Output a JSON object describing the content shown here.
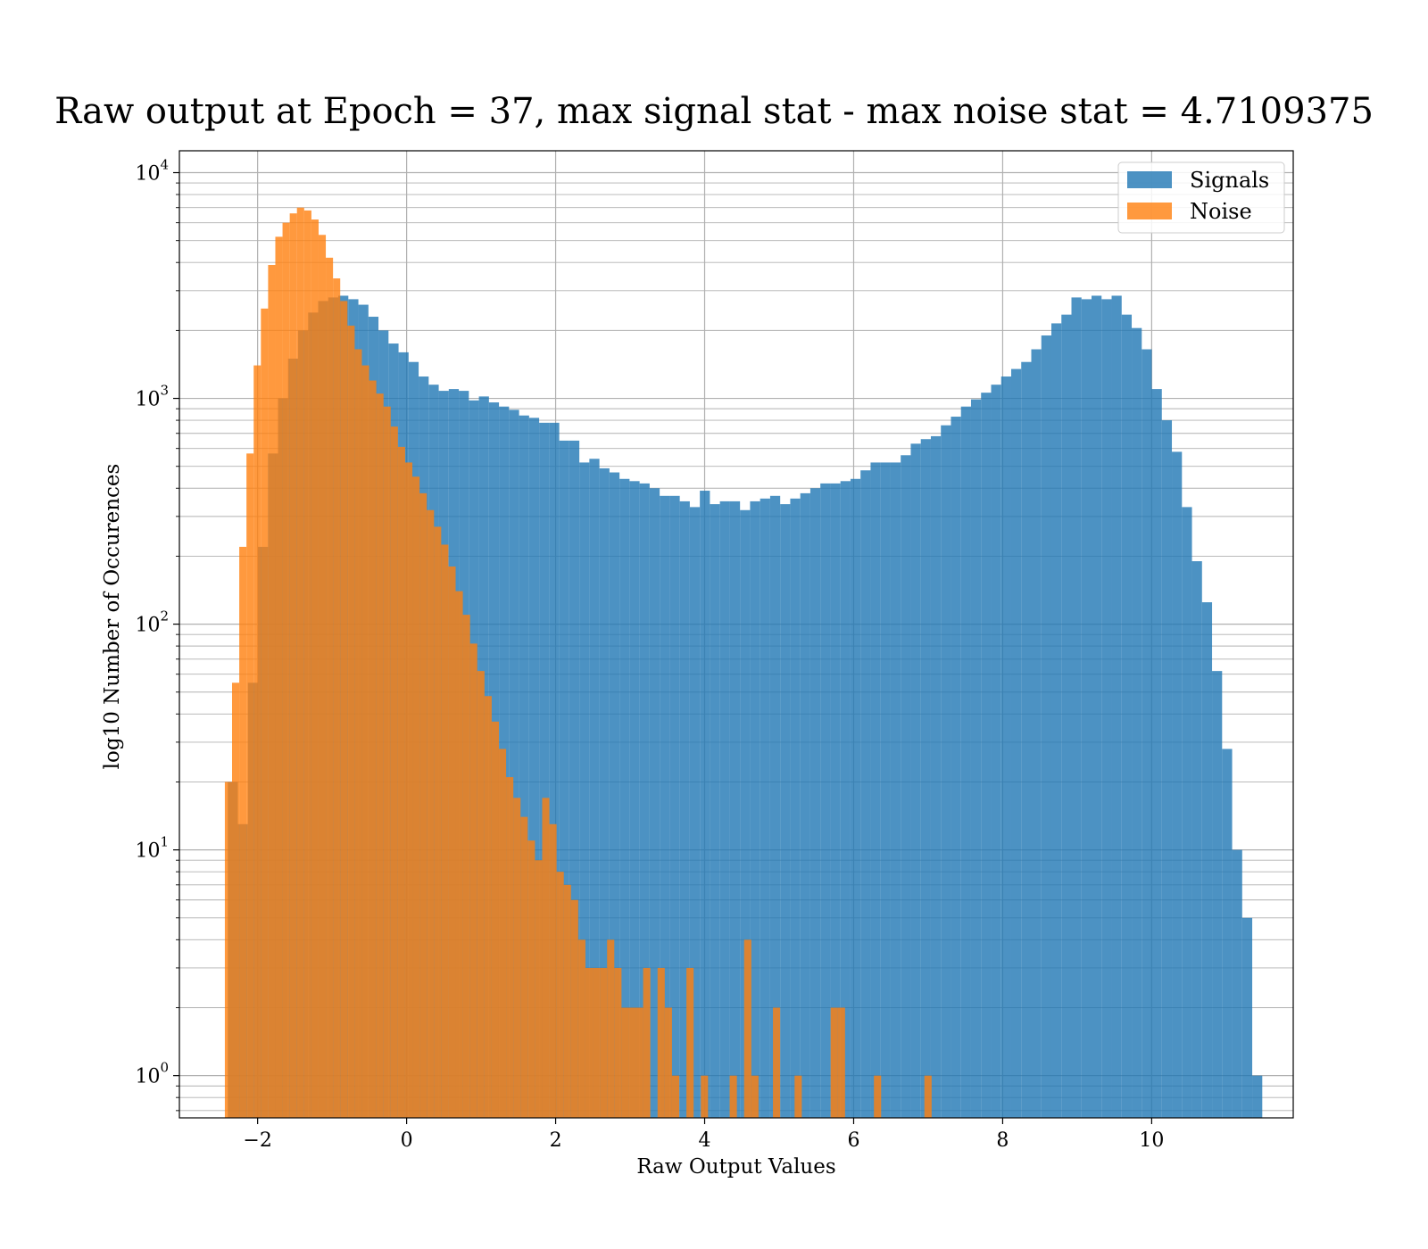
{
  "chart_data": {
    "type": "histogram",
    "title": "Raw output at Epoch = 37, max signal stat - max noise stat = 4.7109375",
    "xlabel": "Raw Output Values",
    "ylabel": "log10 Number of Occurences",
    "x_scale": "linear",
    "y_scale": "log",
    "xlim": [
      -3.05,
      11.9
    ],
    "ylim": [
      0.65,
      12500
    ],
    "xticks": [
      -2,
      0,
      2,
      4,
      6,
      8,
      10
    ],
    "xtick_labels": [
      "−2",
      "0",
      "2",
      "4",
      "6",
      "8",
      "10"
    ],
    "yticks": [
      1,
      10,
      100,
      1000,
      10000
    ],
    "ytick_labels": [
      {
        "base": "10",
        "exp": "0"
      },
      {
        "base": "10",
        "exp": "1"
      },
      {
        "base": "10",
        "exp": "2"
      },
      {
        "base": "10",
        "exp": "3"
      },
      {
        "base": "10",
        "exp": "4"
      }
    ],
    "grid": true,
    "legend_position": "top-right",
    "series": [
      {
        "name": "Signals",
        "color": "#1f77b4",
        "alpha": 0.8,
        "bin_start": -2.4,
        "bin_width": 0.1348,
        "counts": [
          20,
          13,
          55,
          220,
          570,
          1000,
          1500,
          2000,
          2400,
          2700,
          2800,
          2850,
          2750,
          2600,
          2300,
          2000,
          1750,
          1600,
          1450,
          1250,
          1150,
          1080,
          1100,
          1080,
          980,
          1020,
          960,
          920,
          890,
          840,
          820,
          780,
          780,
          650,
          650,
          520,
          540,
          490,
          470,
          440,
          430,
          420,
          400,
          370,
          370,
          350,
          330,
          390,
          340,
          350,
          350,
          320,
          350,
          360,
          370,
          340,
          360,
          380,
          400,
          420,
          420,
          430,
          440,
          480,
          520,
          520,
          520,
          560,
          630,
          660,
          680,
          760,
          830,
          920,
          990,
          1060,
          1150,
          1250,
          1350,
          1450,
          1650,
          1900,
          2150,
          2350,
          2800,
          2750,
          2850,
          2750,
          2850,
          2350,
          2050,
          1650,
          1100,
          800,
          580,
          330,
          190,
          125,
          62,
          28,
          10,
          5,
          1
        ]
      },
      {
        "name": "Noise",
        "color": "#ff7f0e",
        "alpha": 0.8,
        "bin_start": -2.44,
        "bin_width": 0.0968,
        "counts": [
          20,
          55,
          220,
          570,
          1400,
          2500,
          3900,
          5200,
          6000,
          6600,
          7000,
          6800,
          6200,
          5300,
          4200,
          3400,
          2700,
          2100,
          1650,
          1400,
          1200,
          1050,
          920,
          750,
          610,
          520,
          450,
          380,
          320,
          270,
          225,
          180,
          140,
          110,
          82,
          62,
          48,
          37,
          28,
          21,
          17,
          14,
          11,
          9,
          17,
          13,
          8,
          7,
          6,
          4,
          3,
          3,
          3,
          4,
          3,
          2,
          2,
          2,
          3,
          0,
          3,
          2,
          1,
          0,
          3,
          0,
          1,
          0,
          0,
          0,
          1,
          0,
          4,
          1,
          0,
          0,
          2,
          0,
          0,
          1,
          0,
          0,
          0,
          0,
          2,
          2,
          0,
          0,
          0,
          0,
          1,
          0,
          0,
          0,
          0,
          0,
          0,
          1
        ]
      }
    ]
  }
}
